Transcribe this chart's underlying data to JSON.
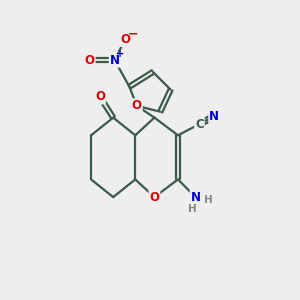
{
  "bg_color": "#eeeeee",
  "bond_color": "#3a5a4a",
  "bond_width": 1.6,
  "dbo": 0.07,
  "atom_colors": {
    "C": "#3a5a4a",
    "N": "#0000cc",
    "O": "#dd0000",
    "H": "#888888"
  },
  "fs": 8.5,
  "fs_small": 7.0,
  "fs_charge": 8.0
}
